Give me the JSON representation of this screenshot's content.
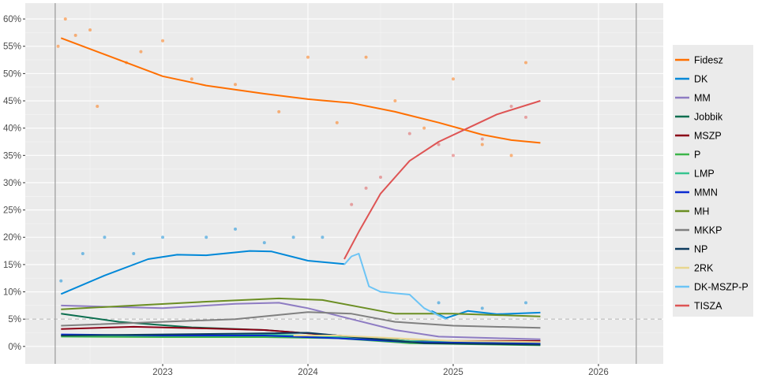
{
  "chart_data": {
    "type": "line",
    "title": "",
    "xlabel": "",
    "ylabel": "",
    "xlim": [
      2022.054,
      2026.446
    ],
    "ylim": [
      -3.2,
      62.9
    ],
    "x_ticks": [
      "2023",
      "2024",
      "2025",
      "2026"
    ],
    "x_tick_values": [
      2023,
      2024,
      2025,
      2026
    ],
    "y_ticks": [
      "0%",
      "5%",
      "10%",
      "15%",
      "20%",
      "25%",
      "30%",
      "35%",
      "40%",
      "45%",
      "50%",
      "55%",
      "60%"
    ],
    "y_tick_values": [
      0,
      5,
      10,
      15,
      20,
      25,
      30,
      35,
      40,
      45,
      50,
      55,
      60
    ],
    "threshold_line": 5,
    "election_lines": [
      2022.26,
      2026.26
    ],
    "grid": true,
    "legend_position": "right",
    "series": [
      {
        "name": "Fidesz",
        "color": "#ff6f00",
        "x": [
          2022.3,
          2022.6,
          2023.0,
          2023.3,
          2023.7,
          2024.0,
          2024.3,
          2024.6,
          2024.9,
          2025.2,
          2025.4,
          2025.6
        ],
        "y": [
          56.5,
          53.5,
          49.5,
          47.8,
          46.3,
          45.3,
          44.6,
          43,
          41,
          38.8,
          37.8,
          37.3
        ],
        "points": {
          "x": [
            2022.28,
            2022.33,
            2022.4,
            2022.5,
            2022.55,
            2022.75,
            2022.85,
            2023.0,
            2023.2,
            2023.5,
            2023.8,
            2024.0,
            2024.2,
            2024.4,
            2024.6,
            2024.8,
            2025.0,
            2025.2,
            2025.4,
            2025.5
          ],
          "y": [
            55,
            60,
            57,
            58,
            44,
            52,
            54,
            56,
            49,
            48,
            43,
            53,
            41,
            53,
            45,
            40,
            49,
            37,
            35,
            52
          ]
        }
      },
      {
        "name": "DK",
        "color": "#0088d8",
        "x": [
          2022.3,
          2022.6,
          2022.9,
          2023.1,
          2023.3,
          2023.6,
          2023.75,
          2024.0,
          2024.25,
          null,
          2024.85,
          2024.95,
          2025.1,
          2025.3,
          2025.6
        ],
        "y": [
          9.6,
          13,
          16,
          16.8,
          16.7,
          17.5,
          17.4,
          15.7,
          15.1,
          null,
          6.5,
          5.2,
          6.5,
          5.9,
          6.2
        ],
        "points": {
          "x": [
            2022.3,
            2022.45,
            2022.6,
            2022.8,
            2023.0,
            2023.3,
            2023.5,
            2023.7,
            2023.9,
            2024.1,
            2024.9,
            2025.2,
            2025.5
          ],
          "y": [
            12,
            17,
            20,
            17,
            20,
            20,
            21.5,
            19,
            20,
            20,
            8,
            7,
            8
          ]
        }
      },
      {
        "name": "MM",
        "color": "#8e7cc3",
        "x": [
          2022.3,
          2023.0,
          2023.5,
          2023.8,
          2024.0,
          2024.3,
          2024.6,
          2024.9,
          2025.3,
          2025.6
        ],
        "y": [
          7.5,
          7,
          7.8,
          8,
          7,
          5,
          3,
          1.8,
          1.5,
          1.3
        ]
      },
      {
        "name": "Jobbik",
        "color": "#0b6e4f",
        "x": [
          2022.3,
          2022.7,
          2023.2,
          2023.7,
          2024.2,
          2024.7,
          2025.6
        ],
        "y": [
          6,
          4.5,
          3.5,
          3,
          2,
          1,
          0.5
        ]
      },
      {
        "name": "MSZP",
        "color": "#8b0016",
        "x": [
          2022.3,
          2022.8,
          2023.3,
          2023.7,
          2024.2,
          2024.7,
          2025.6
        ],
        "y": [
          3.2,
          3.6,
          3.3,
          3.0,
          2,
          1,
          1
        ]
      },
      {
        "name": "P",
        "color": "#3cb54a",
        "x": [
          2022.3,
          2023.0,
          2023.7,
          2024.2,
          2024.7,
          2025.6
        ],
        "y": [
          1.8,
          1.7,
          1.7,
          1.5,
          0.6,
          0.2
        ]
      },
      {
        "name": "LMP",
        "color": "#36c48f",
        "x": [
          2022.3,
          2023.0,
          2023.7,
          2024.2,
          2024.7,
          2025.6
        ],
        "y": [
          2.0,
          2.0,
          2.2,
          1.8,
          1.0,
          0.5
        ]
      },
      {
        "name": "MMN",
        "color": "#0a2bd1",
        "x": [
          2022.3,
          2023.0,
          2023.7,
          2024.2,
          2024.7,
          2025.6
        ],
        "y": [
          2.2,
          2.0,
          2.0,
          1.5,
          0.8,
          0.5
        ]
      },
      {
        "name": "MH",
        "color": "#6b8e23",
        "x": [
          2022.3,
          2022.8,
          2023.3,
          2023.8,
          2024.1,
          2024.4,
          2024.6,
          2025.0,
          2025.6
        ],
        "y": [
          6.8,
          7.5,
          8.2,
          8.8,
          8.5,
          7,
          6,
          6,
          5.5
        ]
      },
      {
        "name": "MKKP",
        "color": "#808080",
        "x": [
          2022.3,
          2023.0,
          2023.5,
          2024.0,
          2024.3,
          2024.6,
          2025.0,
          2025.6
        ],
        "y": [
          3.8,
          4.5,
          5.0,
          6.3,
          6,
          4.5,
          3.8,
          3.4
        ]
      },
      {
        "name": "NP",
        "color": "#0c3b5e",
        "x": [
          2022.3,
          2023.0,
          2023.7,
          2024.0,
          2024.4,
          2024.8,
          2025.6
        ],
        "y": [
          2.0,
          2.2,
          2.4,
          2.5,
          1.5,
          0.6,
          0.3
        ]
      },
      {
        "name": "2RK",
        "color": "#e8d68f",
        "x": [
          2023.9,
          2024.2,
          2024.6,
          2025.0,
          2025.6
        ],
        "y": [
          2.0,
          2.0,
          1.5,
          1.0,
          0.8
        ]
      },
      {
        "name": "DK-MSZP-P",
        "color": "#6cc4f5",
        "x": [
          2024.25,
          2024.3,
          2024.35,
          2024.42,
          2024.5,
          2024.7,
          2024.8,
          2024.95
        ],
        "y": [
          15,
          16.5,
          17,
          11,
          10,
          9.5,
          7,
          5
        ]
      },
      {
        "name": "TISZA",
        "color": "#de5454",
        "x": [
          2024.25,
          2024.35,
          2024.5,
          2024.7,
          2024.9,
          2025.1,
          2025.3,
          2025.6
        ],
        "y": [
          16,
          21,
          28,
          34,
          37.5,
          40,
          42.5,
          45
        ],
        "points": {
          "x": [
            2024.3,
            2024.4,
            2024.5,
            2024.7,
            2024.9,
            2025.0,
            2025.2,
            2025.4,
            2025.5
          ],
          "y": [
            26,
            29,
            31,
            39,
            37,
            35,
            38,
            44,
            42
          ]
        }
      }
    ]
  }
}
